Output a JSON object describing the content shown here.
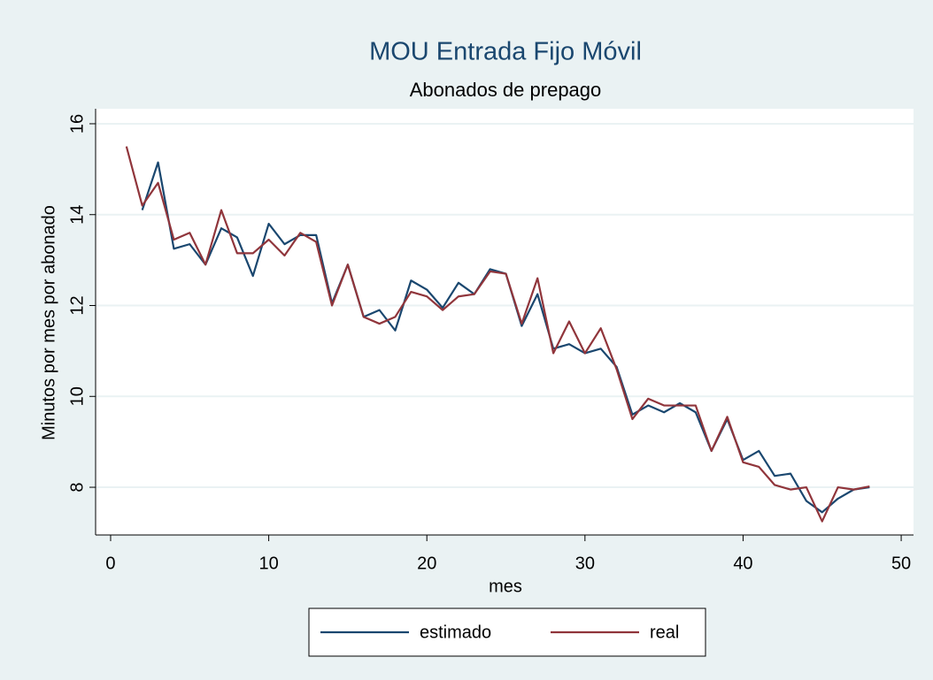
{
  "chart_data": {
    "type": "line",
    "title": "MOU Entrada Fijo Móvil",
    "subtitle": "Abonados de prepago",
    "x_label": "mes",
    "y_label": "Minutos por mes por abonado",
    "x": [
      1,
      2,
      3,
      4,
      5,
      6,
      7,
      8,
      9,
      10,
      11,
      12,
      13,
      14,
      15,
      16,
      17,
      18,
      19,
      20,
      21,
      22,
      23,
      24,
      25,
      26,
      27,
      28,
      29,
      30,
      31,
      32,
      33,
      34,
      35,
      36,
      37,
      38,
      39,
      40,
      41,
      42,
      43,
      44,
      45,
      46,
      47,
      48
    ],
    "series": [
      {
        "name": "estimado",
        "color": "#1a476f",
        "values": [
          null,
          14.1,
          15.15,
          13.25,
          13.35,
          12.9,
          13.7,
          13.5,
          12.65,
          13.8,
          13.35,
          13.55,
          13.55,
          12.05,
          12.9,
          11.75,
          11.9,
          11.45,
          12.55,
          12.35,
          11.95,
          12.5,
          12.25,
          12.8,
          12.7,
          11.55,
          12.25,
          11.05,
          11.15,
          10.95,
          11.05,
          10.65,
          9.6,
          9.8,
          9.65,
          9.85,
          9.65,
          8.8,
          9.5,
          8.6,
          8.8,
          8.25,
          8.3,
          7.7,
          7.45,
          7.75,
          7.95,
          8.0
        ]
      },
      {
        "name": "real",
        "color": "#90353b",
        "values": [
          15.5,
          14.2,
          14.7,
          13.45,
          13.6,
          12.9,
          14.1,
          13.15,
          13.15,
          13.45,
          13.1,
          13.6,
          13.4,
          12.0,
          12.9,
          11.75,
          11.6,
          11.75,
          12.3,
          12.2,
          11.9,
          12.2,
          12.25,
          12.75,
          12.7,
          11.6,
          12.6,
          10.95,
          11.65,
          10.95,
          11.5,
          10.6,
          9.5,
          9.95,
          9.8,
          9.8,
          9.8,
          8.8,
          9.55,
          8.55,
          8.45,
          8.05,
          7.95,
          8.0,
          7.25,
          8.0,
          7.95,
          8.02
        ]
      }
    ],
    "xlim": [
      -0.95,
      50.78
    ],
    "xticks": [
      0,
      10,
      20,
      30,
      40,
      50
    ],
    "ylim": [
      6.95,
      16.33
    ],
    "yticks": [
      8,
      10,
      12,
      14,
      16
    ],
    "grid": true,
    "legend": "bottom"
  }
}
